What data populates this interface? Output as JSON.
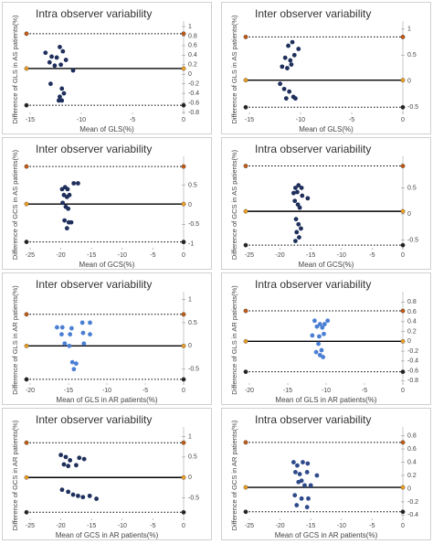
{
  "chart_data": [
    {
      "type": "scatter",
      "title": "Intra observer variability",
      "xlabel": "Mean of GLS(%)",
      "ylabel": "Difference of GLS in AS patients(%)",
      "color": "#1f2f5c",
      "x": [
        -13.5,
        -12.9,
        -12.1,
        -12.4,
        -11.8,
        -11.5,
        -13.1,
        -12.6,
        -12.0,
        -10.8,
        -13.0,
        -11.9,
        -11.7,
        -12.1,
        -12.2,
        -11.9
      ],
      "y": [
        0.45,
        0.37,
        0.57,
        0.35,
        0.48,
        0.3,
        0.25,
        0.18,
        0.2,
        0.08,
        -0.2,
        -0.3,
        -0.4,
        -0.47,
        -0.55,
        -0.55
      ],
      "xlim": [
        -15,
        0
      ],
      "xticks": [
        -15,
        -10,
        -5,
        0
      ],
      "ylim": [
        -0.8,
        1
      ],
      "yticks": [
        -0.8,
        -0.6,
        -0.4,
        -0.2,
        0,
        0.2,
        0.4,
        0.6,
        0.8,
        1
      ],
      "mean_line": 0.12,
      "limits_of_agreement": [
        -0.65,
        0.85
      ]
    },
    {
      "type": "scatter",
      "title": "Inter observer variability",
      "xlabel": "Mean of GLS(%)",
      "ylabel": "Difference of GLS in AS patients(%)",
      "color": "#1f2f5c",
      "x": [
        -11.2,
        -10.8,
        -10.2,
        -11.5,
        -11.0,
        -10.6,
        -11.8,
        -11.3,
        -10.9,
        -12.0,
        -11.6,
        -11.1,
        -10.7,
        -11.4,
        -10.5
      ],
      "y": [
        0.68,
        0.75,
        0.62,
        0.45,
        0.4,
        0.5,
        0.28,
        0.25,
        0.32,
        -0.05,
        -0.15,
        -0.2,
        -0.3,
        -0.33,
        -0.33
      ],
      "xlim": [
        -15,
        0
      ],
      "xticks": [
        -15,
        -10,
        -5,
        0
      ],
      "ylim": [
        -0.6,
        1.05
      ],
      "yticks": [
        -0.5,
        0,
        0.5,
        1
      ],
      "mean_line": 0.02,
      "limits_of_agreement": [
        -0.5,
        0.85
      ]
    },
    {
      "type": "scatter",
      "title": "Inter observer variability",
      "xlabel": "Mean of GCS(%)",
      "ylabel": "Difference of GCS in AS patients(%)",
      "color": "#1f2f5c",
      "x": [
        -19.8,
        -19.3,
        -18.9,
        -17.9,
        -17.2,
        -19.5,
        -19.0,
        -18.6,
        -19.7,
        -19.2,
        -18.8,
        -19.4,
        -18.7,
        -18.3,
        -19.0
      ],
      "y": [
        0.4,
        0.45,
        0.4,
        0.55,
        0.55,
        0.25,
        0.2,
        0.25,
        0.05,
        -0.05,
        -0.1,
        -0.4,
        -0.45,
        -0.45,
        -0.6
      ],
      "xlim": [
        -25,
        0
      ],
      "xticks": [
        -25,
        -20,
        -15,
        -10,
        -5,
        0
      ],
      "ylim": [
        -1.1,
        1.1
      ],
      "yticks": [
        -1,
        -0.5,
        0,
        0.5
      ],
      "mean_line": 0.02,
      "limits_of_agreement": [
        -0.95,
        0.98
      ]
    },
    {
      "type": "scatter",
      "title": "Intra observer variability",
      "xlabel": "Mean of GCS(%)",
      "ylabel": "Difference of GCS in AS patients(%)",
      "color": "#1f2f5c",
      "x": [
        -17.5,
        -17.0,
        -16.5,
        -17.8,
        -17.2,
        -16.4,
        -15.5,
        -17.6,
        -17.1,
        -16.8,
        -17.4,
        -17.0,
        -16.6,
        -17.3,
        -16.9,
        -17.5
      ],
      "y": [
        0.5,
        0.55,
        0.5,
        0.4,
        0.42,
        0.35,
        0.3,
        0.25,
        0.18,
        0.12,
        -0.1,
        -0.2,
        -0.28,
        -0.35,
        -0.45,
        -0.52
      ],
      "xlim": [
        -25,
        0
      ],
      "xticks": [
        -25,
        -20,
        -15,
        -10,
        -5,
        0
      ],
      "ylim": [
        -0.65,
        1.0
      ],
      "yticks": [
        -0.5,
        0,
        0.5
      ],
      "mean_line": 0.05,
      "limits_of_agreement": [
        -0.6,
        0.92
      ]
    },
    {
      "type": "scatter",
      "title": "Inter observer variability",
      "xlabel": "Mean of GLS in AR patients(%)",
      "ylabel": "Difference of GLS in AR patients(%)",
      "color": "#4a7fd4",
      "x": [
        -16.5,
        -15.8,
        -14.6,
        -13.2,
        -12.2,
        -15.9,
        -14.8,
        -13.1,
        -12.2,
        -15.5,
        -14.9,
        -13.0,
        -14.5,
        -14.0,
        -14.3
      ],
      "y": [
        0.4,
        0.4,
        0.38,
        0.5,
        0.5,
        0.25,
        0.25,
        0.28,
        0.25,
        0.05,
        0.0,
        0.05,
        -0.35,
        -0.38,
        -0.5
      ],
      "xlim": [
        -20,
        0
      ],
      "xticks": [
        -20,
        -15,
        -10,
        -5,
        0
      ],
      "ylim": [
        -0.8,
        1.05
      ],
      "yticks": [
        -0.5,
        0,
        0.5,
        1
      ],
      "mean_line": 0,
      "limits_of_agreement": [
        -0.72,
        0.68
      ]
    },
    {
      "type": "scatter",
      "title": "Intra observer variability",
      "xlabel": "Mean of GLS in AR patients(%)",
      "ylabel": "Difference of GLS in AR patients(%)",
      "color": "#4a7fd4",
      "x": [
        -11.5,
        -10.8,
        -10.2,
        -11.2,
        -10.5,
        -9.8,
        -11.8,
        -10.9,
        -10.3,
        -11.0,
        -10.6,
        -11.3,
        -10.8,
        -10.4
      ],
      "y": [
        0.42,
        0.35,
        0.35,
        0.3,
        0.28,
        0.42,
        0.12,
        0.1,
        0.15,
        -0.05,
        -0.18,
        -0.22,
        -0.28,
        -0.32
      ],
      "xlim": [
        -20,
        0
      ],
      "xticks": [
        -20,
        -15,
        -10,
        -5,
        0
      ],
      "ylim": [
        -0.85,
        0.9
      ],
      "yticks": [
        -0.8,
        -0.6,
        -0.4,
        -0.2,
        0,
        0.2,
        0.4,
        0.6,
        0.8
      ],
      "mean_line": 0,
      "limits_of_agreement": [
        -0.62,
        0.62
      ]
    },
    {
      "type": "scatter",
      "title": "Inter observer variability",
      "xlabel": "Mean of GCS in AR patients(%)",
      "ylabel": "Difference of GCS in AR patients(%)",
      "color": "#1f2f5c",
      "x": [
        -20.0,
        -19.2,
        -18.5,
        -17.0,
        -16.2,
        -19.5,
        -18.8,
        -17.5,
        -19.8,
        -18.8,
        -18.0,
        -17.2,
        -16.4,
        -15.3,
        -14.2
      ],
      "y": [
        0.55,
        0.5,
        0.42,
        0.48,
        0.45,
        0.32,
        0.28,
        0.3,
        -0.3,
        -0.35,
        -0.42,
        -0.45,
        -0.48,
        -0.45,
        -0.52
      ],
      "xlim": [
        -25,
        0
      ],
      "xticks": [
        -25,
        -20,
        -15,
        -10,
        -5,
        0
      ],
      "ylim": [
        -1,
        1.1
      ],
      "yticks": [
        -0.5,
        0,
        0.5,
        1
      ],
      "mean_line": 0,
      "limits_of_agreement": [
        -0.85,
        0.85
      ]
    },
    {
      "type": "scatter",
      "title": "Intra observer variability",
      "xlabel": "Mean of GCS in AR patients(%)",
      "ylabel": "Difference of GCS in AR patients(%)",
      "color": "#2e4a8a",
      "x": [
        -17.8,
        -17.2,
        -16.3,
        -15.5,
        -17.5,
        -16.8,
        -15.6,
        -14.0,
        -17.0,
        -16.5,
        -16.0,
        -15.0,
        -17.6,
        -16.5,
        -15.4,
        -17.3,
        -15.6
      ],
      "y": [
        0.4,
        0.35,
        0.4,
        0.38,
        0.25,
        0.22,
        0.25,
        0.2,
        0.1,
        0.12,
        0.05,
        0.05,
        -0.1,
        -0.15,
        -0.15,
        -0.25,
        -0.28
      ],
      "xlim": [
        -25,
        0
      ],
      "xticks": [
        -25,
        -20,
        -15,
        -10,
        -5,
        0
      ],
      "ylim": [
        -0.45,
        0.85
      ],
      "yticks": [
        -0.4,
        -0.2,
        0,
        0.2,
        0.4,
        0.6,
        0.8
      ],
      "mean_line": 0.02,
      "limits_of_agreement": [
        -0.35,
        0.7
      ]
    }
  ]
}
